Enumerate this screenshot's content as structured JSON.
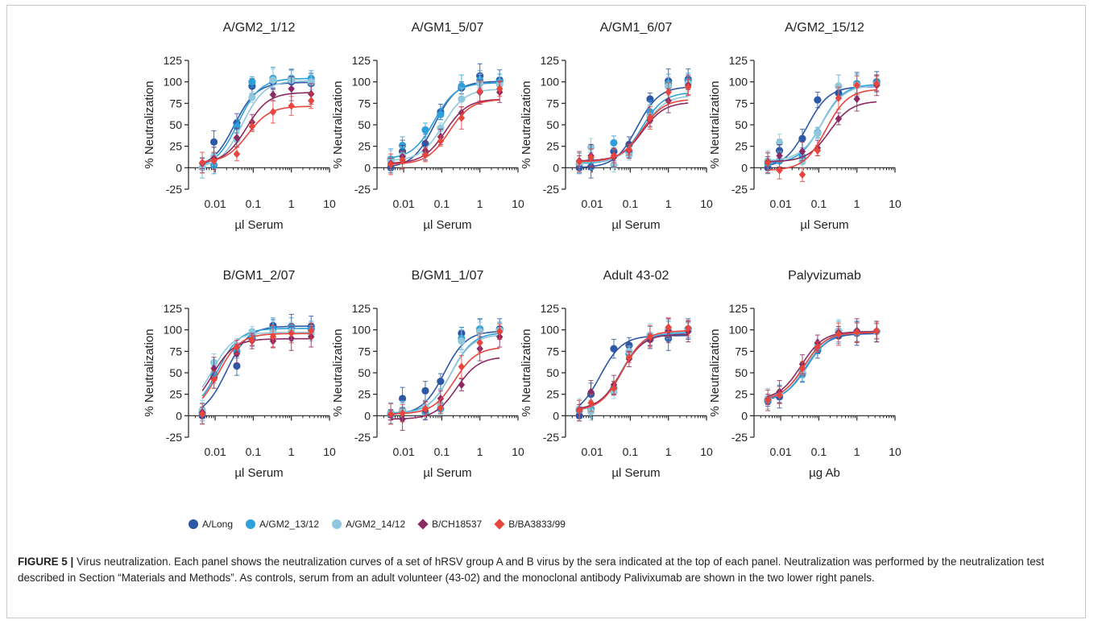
{
  "figure": {
    "caption_label": "FIGURE 5 |",
    "caption_text": " Virus neutralization. Each panel shows the neutralization curves of a set of hRSV group A and B virus by the sera indicated at the top of each panel. Neutralization was performed by the neutralization test described in Section “Materials and Methods”. As controls, serum from an adult volunteer (43-02) and the monoclonal antibody Palivixumab are shown in the two lower right panels."
  },
  "legend": [
    {
      "name": "A/Long",
      "color": "#2e57a6",
      "marker": "circle"
    },
    {
      "name": "A/GM2_13/12",
      "color": "#2e9fd8",
      "marker": "circle"
    },
    {
      "name": "A/GM2_14/12",
      "color": "#8fc7dc",
      "marker": "circle"
    },
    {
      "name": "B/CH18537",
      "color": "#8a2a63",
      "marker": "diamond"
    },
    {
      "name": "B/BA3833/99",
      "color": "#e8453c",
      "marker": "diamond"
    }
  ],
  "chart_data": [
    {
      "type": "scatter",
      "title": "A/GM2_1/12",
      "xlabel": "µl Serum",
      "ylabel": "% Neutralization",
      "xscale": "log",
      "xlim": [
        0.002,
        10
      ],
      "ylim": [
        -25,
        125
      ],
      "xticks": [
        "0.01",
        "0.1",
        "1",
        "10"
      ],
      "yticks": [
        "-25",
        "0",
        "25",
        "50",
        "75",
        "100",
        "125"
      ],
      "x": [
        0.0046,
        0.0093,
        0.037,
        0.093,
        0.33,
        1,
        3.3
      ],
      "series": [
        {
          "name": "A/Long",
          "values": [
            0,
            30,
            52,
            95,
            100,
            100,
            98
          ]
        },
        {
          "name": "A/GM2_13/12",
          "values": [
            0,
            3,
            48,
            100,
            104,
            104,
            104
          ]
        },
        {
          "name": "A/GM2_14/12",
          "values": [
            0,
            13,
            33,
            82,
            102,
            102,
            100
          ]
        },
        {
          "name": "B/CH18537",
          "values": [
            5,
            11,
            35,
            53,
            85,
            92,
            86
          ]
        },
        {
          "name": "B/BA3833/99",
          "values": [
            6,
            8,
            16,
            48,
            65,
            72,
            78
          ]
        }
      ]
    },
    {
      "type": "scatter",
      "title": "A/GM1_5/07",
      "xlabel": "µl Serum",
      "ylabel": "% Neutralization",
      "xscale": "log",
      "xlim": [
        0.002,
        10
      ],
      "ylim": [
        -25,
        125
      ],
      "xticks": [
        "0.01",
        "0.1",
        "1",
        "10"
      ],
      "yticks": [
        "-25",
        "0",
        "25",
        "50",
        "75",
        "100",
        "125"
      ],
      "x": [
        0.0046,
        0.0093,
        0.037,
        0.093,
        0.33,
        1,
        3.3
      ],
      "series": [
        {
          "name": "A/Long",
          "values": [
            0,
            19,
            28,
            65,
            93,
            107,
            102
          ]
        },
        {
          "name": "A/GM2_13/12",
          "values": [
            10,
            26,
            44,
            62,
            95,
            102,
            100
          ]
        },
        {
          "name": "A/GM2_14/12",
          "values": [
            8,
            14,
            16,
            46,
            80,
            98,
            97
          ]
        },
        {
          "name": "B/CH18537",
          "values": [
            5,
            13,
            20,
            36,
            64,
            88,
            88
          ]
        },
        {
          "name": "B/BA3833/99",
          "values": [
            4,
            9,
            15,
            31,
            58,
            89,
            92
          ]
        }
      ]
    },
    {
      "type": "scatter",
      "title": "A/GM1_6/07",
      "xlabel": "µl Serum",
      "ylabel": "% Neutralization",
      "xscale": "log",
      "xlim": [
        0.002,
        10
      ],
      "ylim": [
        -25,
        125
      ],
      "xticks": [
        "0.01",
        "0.1",
        "1",
        "10"
      ],
      "yticks": [
        "-25",
        "0",
        "25",
        "50",
        "75",
        "100",
        "125"
      ],
      "x": [
        0.0046,
        0.0093,
        0.037,
        0.093,
        0.33,
        1,
        3.3
      ],
      "series": [
        {
          "name": "A/Long",
          "values": [
            0,
            1,
            19,
            27,
            80,
            101,
            103
          ]
        },
        {
          "name": "A/GM2_13/12",
          "values": [
            5,
            8,
            29,
            18,
            65,
            98,
            101
          ]
        },
        {
          "name": "A/GM2_14/12",
          "values": [
            6,
            24,
            3,
            15,
            60,
            95,
            98
          ]
        },
        {
          "name": "B/CH18537",
          "values": [
            8,
            14,
            12,
            20,
            55,
            78,
            96
          ]
        },
        {
          "name": "B/BA3833/99",
          "values": [
            7,
            12,
            14,
            21,
            58,
            88,
            94
          ]
        }
      ]
    },
    {
      "type": "scatter",
      "title": "A/GM2_15/12",
      "xlabel": "µl Serum",
      "ylabel": "% Neutralization",
      "xscale": "log",
      "xlim": [
        0.002,
        10
      ],
      "ylim": [
        -25,
        125
      ],
      "xticks": [
        "0.01",
        "0.1",
        "1",
        "10"
      ],
      "yticks": [
        "-25",
        "0",
        "25",
        "50",
        "75",
        "100",
        "125"
      ],
      "x": [
        0.0046,
        0.0093,
        0.037,
        0.093,
        0.33,
        1,
        3.3
      ],
      "series": [
        {
          "name": "A/Long",
          "values": [
            0,
            20,
            34,
            79,
            87,
            97,
            100
          ]
        },
        {
          "name": "A/GM2_13/12",
          "values": [
            5,
            8,
            13,
            41,
            95,
            98,
            99
          ]
        },
        {
          "name": "A/GM2_14/12",
          "values": [
            8,
            29,
            7,
            40,
            95,
            96,
            97
          ]
        },
        {
          "name": "B/CH18537",
          "values": [
            7,
            14,
            19,
            23,
            57,
            80,
            96
          ]
        },
        {
          "name": "B/BA3833/99",
          "values": [
            6,
            -3,
            -8,
            20,
            81,
            96,
            98
          ]
        }
      ]
    },
    {
      "type": "scatter",
      "title": "B/GM1_2/07",
      "xlabel": "µl Serum",
      "ylabel": "% Neutralization",
      "xscale": "log",
      "xlim": [
        0.002,
        10
      ],
      "ylim": [
        -25,
        125
      ],
      "xticks": [
        "0.01",
        "0.1",
        "1",
        "10"
      ],
      "yticks": [
        "-25",
        "0",
        "25",
        "50",
        "75",
        "100",
        "125"
      ],
      "x": [
        0.0046,
        0.0093,
        0.037,
        0.093,
        0.33,
        1,
        3.3
      ],
      "series": [
        {
          "name": "A/Long",
          "values": [
            0,
            45,
            58,
            90,
            105,
            104,
            104
          ]
        },
        {
          "name": "A/GM2_13/12",
          "values": [
            3,
            48,
            75,
            93,
            101,
            103,
            101
          ]
        },
        {
          "name": "A/GM2_14/12",
          "values": [
            6,
            62,
            82,
            98,
            97,
            98,
            96
          ]
        },
        {
          "name": "B/CH18537",
          "values": [
            4,
            55,
            72,
            87,
            87,
            90,
            92
          ]
        },
        {
          "name": "B/BA3833/99",
          "values": [
            2,
            42,
            80,
            88,
            92,
            96,
            99
          ]
        }
      ]
    },
    {
      "type": "scatter",
      "title": "B/GM1_1/07",
      "xlabel": "µl Serum",
      "ylabel": "% Neutralization",
      "xscale": "log",
      "xlim": [
        0.002,
        10
      ],
      "ylim": [
        -25,
        125
      ],
      "xticks": [
        "0.01",
        "0.1",
        "1",
        "10"
      ],
      "yticks": [
        "-25",
        "0",
        "25",
        "50",
        "75",
        "100",
        "125"
      ],
      "x": [
        0.0046,
        0.0093,
        0.037,
        0.093,
        0.33,
        1,
        3.3
      ],
      "series": [
        {
          "name": "A/Long",
          "values": [
            1,
            20,
            29,
            40,
            96,
            99,
            101
          ]
        },
        {
          "name": "A/GM2_13/12",
          "values": [
            3,
            5,
            4,
            8,
            90,
            101,
            100
          ]
        },
        {
          "name": "A/GM2_14/12",
          "values": [
            2,
            7,
            10,
            13,
            87,
            98,
            99
          ]
        },
        {
          "name": "B/CH18537",
          "values": [
            1,
            -4,
            6,
            20,
            36,
            78,
            92
          ]
        },
        {
          "name": "B/BA3833/99",
          "values": [
            2,
            3,
            8,
            9,
            57,
            85,
            98
          ]
        }
      ]
    },
    {
      "type": "scatter",
      "title": "Adult 43-02",
      "xlabel": "µl Serum",
      "ylabel": "% Neutralization",
      "xscale": "log",
      "xlim": [
        0.002,
        10
      ],
      "ylim": [
        -25,
        125
      ],
      "xticks": [
        "0.01",
        "0.1",
        "1",
        "10"
      ],
      "yticks": [
        "-25",
        "0",
        "25",
        "50",
        "75",
        "100",
        "125"
      ],
      "x": [
        0.0046,
        0.0093,
        0.037,
        0.093,
        0.33,
        1,
        3.3
      ],
      "series": [
        {
          "name": "A/Long",
          "values": [
            0,
            25,
            78,
            82,
            89,
            90,
            101
          ]
        },
        {
          "name": "A/GM2_13/12",
          "values": [
            6,
            8,
            32,
            72,
            91,
            99,
            100
          ]
        },
        {
          "name": "A/GM2_14/12",
          "values": [
            8,
            5,
            28,
            75,
            94,
            101,
            99
          ]
        },
        {
          "name": "B/CH18537",
          "values": [
            7,
            28,
            36,
            66,
            88,
            99,
            98
          ]
        },
        {
          "name": "B/BA3833/99",
          "values": [
            6,
            15,
            32,
            68,
            92,
            103,
            102
          ]
        }
      ]
    },
    {
      "type": "scatter",
      "title": "Palyvizumab",
      "xlabel": "µg Ab",
      "ylabel": "% Neutralization",
      "xscale": "log",
      "xlim": [
        0.002,
        10
      ],
      "ylim": [
        -25,
        125
      ],
      "xticks": [
        "0.01",
        "0.1",
        "1",
        "10"
      ],
      "yticks": [
        "-25",
        "0",
        "25",
        "50",
        "75",
        "100",
        "125"
      ],
      "x": [
        0.0046,
        0.0093,
        0.037,
        0.093,
        0.33,
        1,
        3.3
      ],
      "series": [
        {
          "name": "A/Long",
          "values": [
            17,
            22,
            50,
            76,
            93,
            96,
            98
          ]
        },
        {
          "name": "A/GM2_13/12",
          "values": [
            18,
            25,
            48,
            78,
            97,
            97,
            98
          ]
        },
        {
          "name": "A/GM2_14/12",
          "values": [
            20,
            26,
            52,
            83,
            99,
            98,
            98
          ]
        },
        {
          "name": "B/CH18537",
          "values": [
            19,
            28,
            60,
            85,
            97,
            99,
            98
          ]
        },
        {
          "name": "B/BA3833/99",
          "values": [
            18,
            24,
            55,
            80,
            95,
            97,
            99
          ]
        }
      ]
    }
  ]
}
